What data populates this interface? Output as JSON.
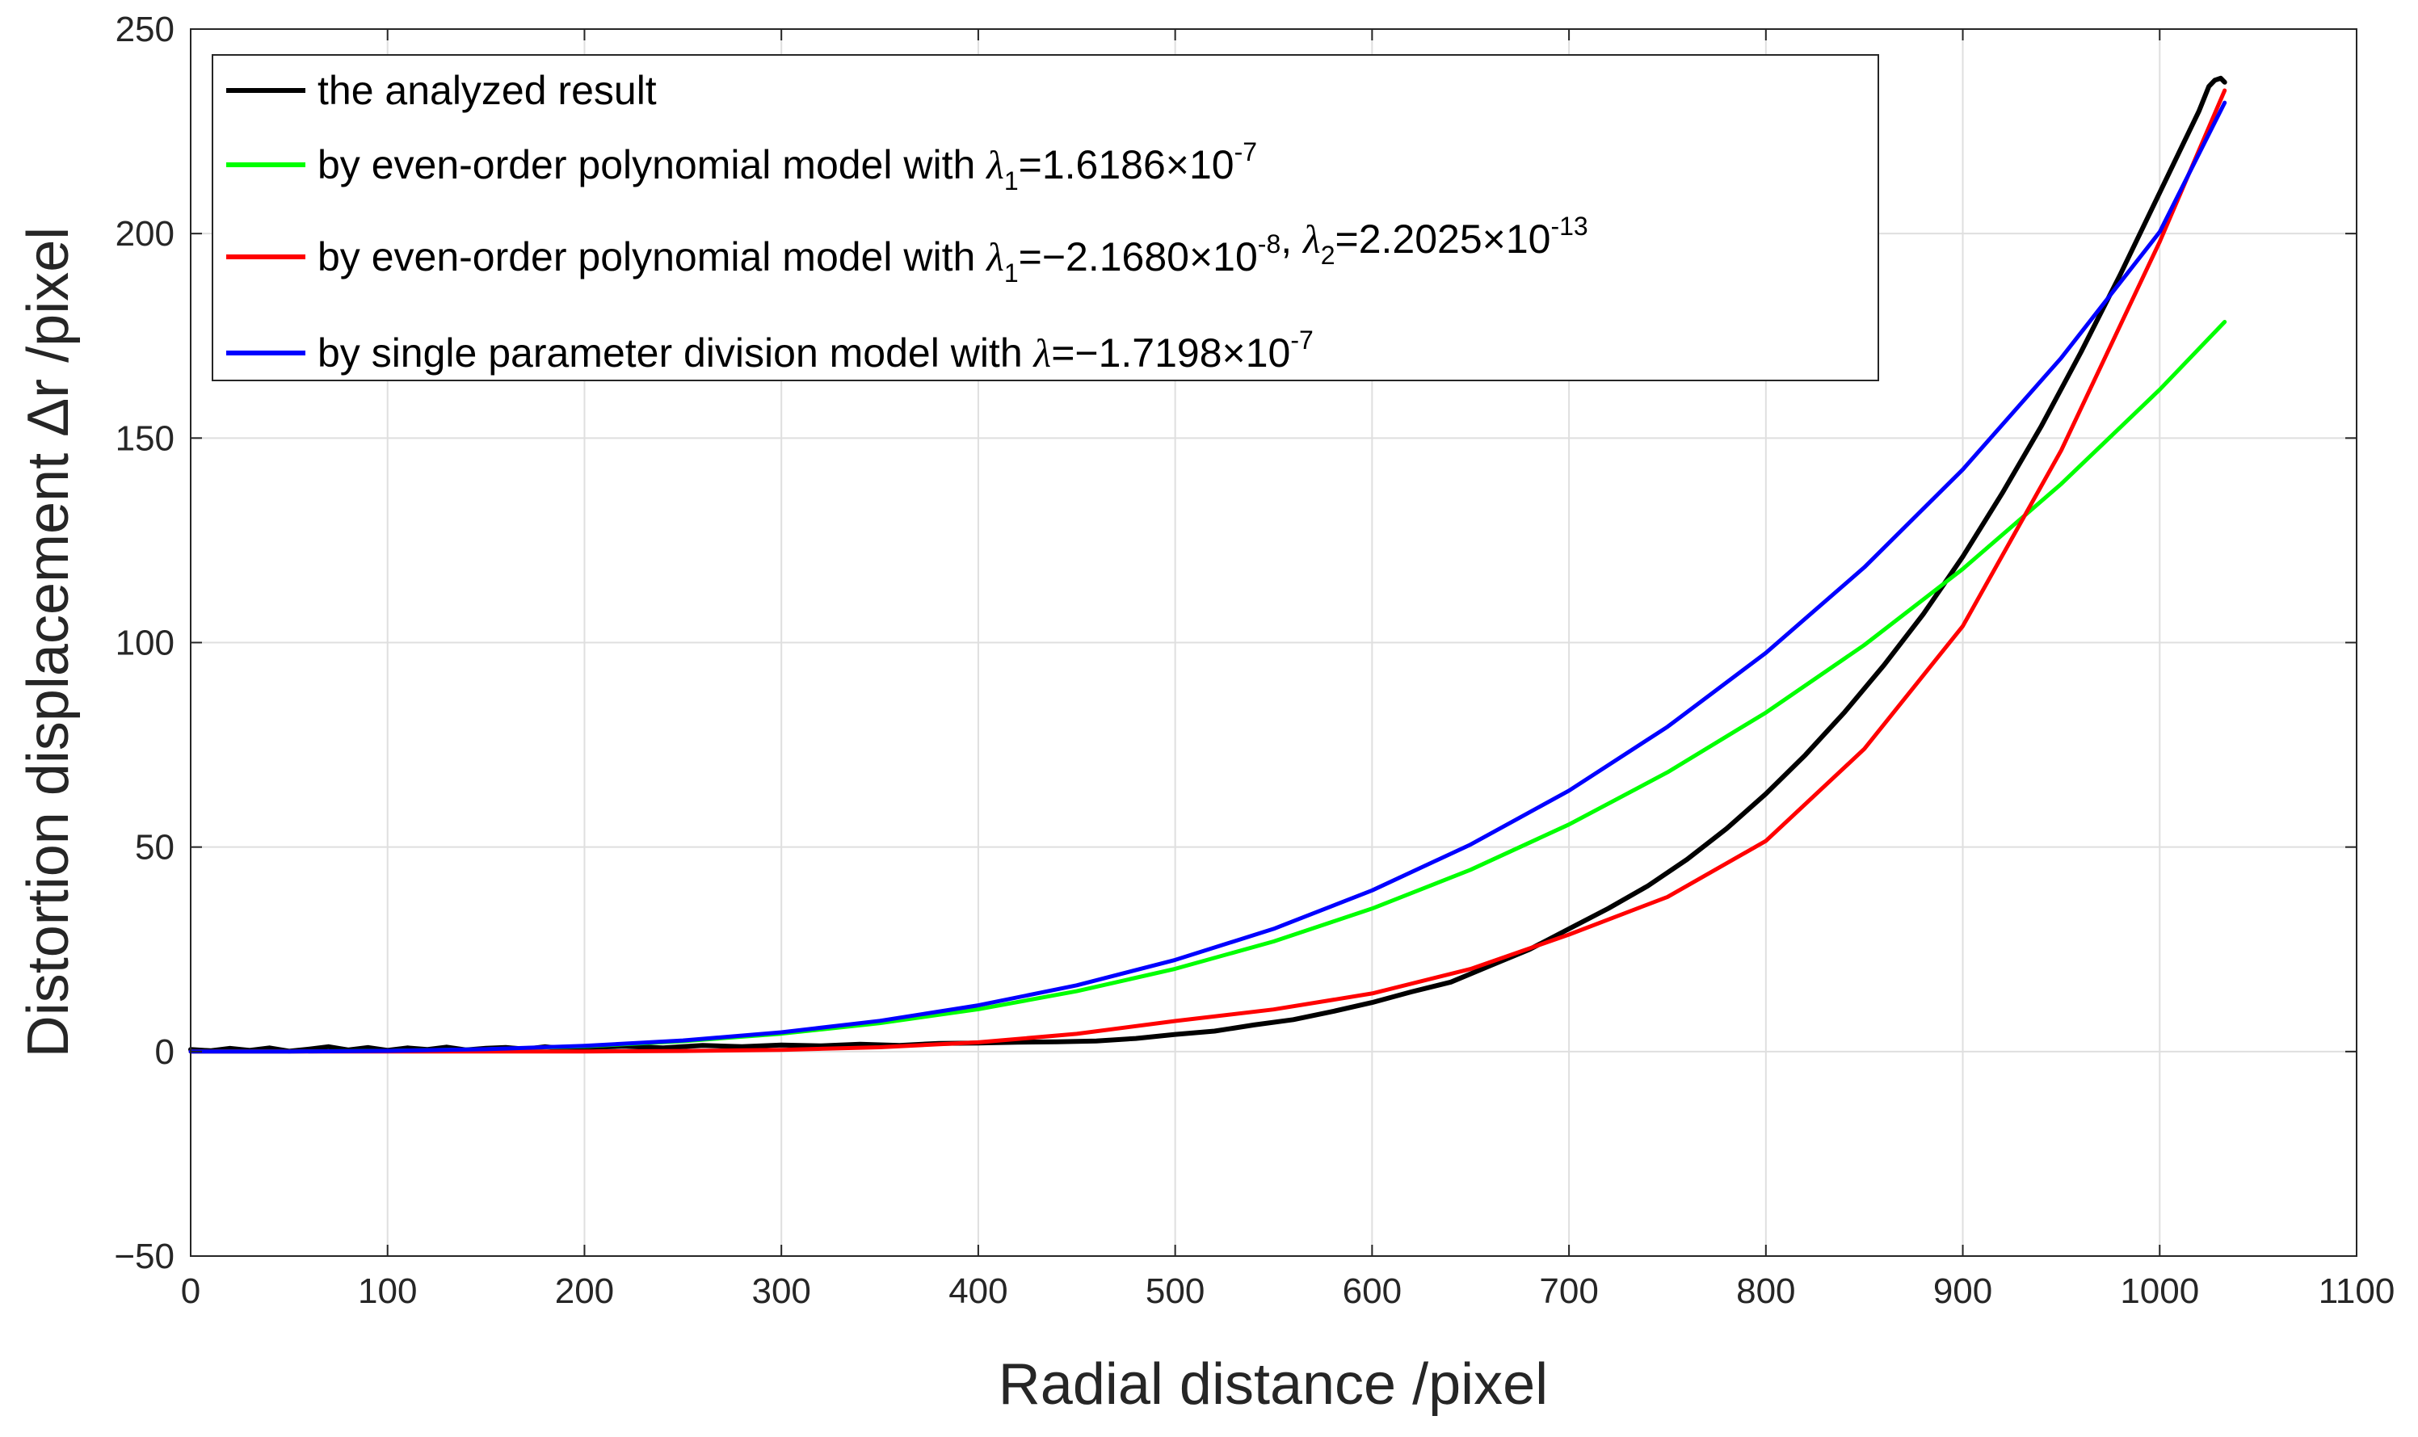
{
  "chart_data": {
    "type": "line",
    "title": "",
    "xlabel": "Radial distance /pixel",
    "ylabel": "Distortion displacement Δr /pixel",
    "xlim": [
      0,
      1100
    ],
    "ylim": [
      -50,
      250
    ],
    "xticks": [
      0,
      100,
      200,
      300,
      400,
      500,
      600,
      700,
      800,
      900,
      1000,
      1100
    ],
    "yticks": [
      -50,
      0,
      50,
      100,
      150,
      200,
      250
    ],
    "xtick_labels": [
      "0",
      "100",
      "200",
      "300",
      "400",
      "500",
      "600",
      "700",
      "800",
      "900",
      "1000",
      "1100"
    ],
    "ytick_labels": [
      "−50",
      "0",
      "50",
      "100",
      "150",
      "200",
      "250"
    ],
    "grid": true,
    "legend_position": "top-left",
    "series": [
      {
        "name": "the analyzed result",
        "legend_parts": [
          "the analyzed result"
        ],
        "color": "#000000",
        "x": [
          0,
          10,
          20,
          30,
          40,
          50,
          60,
          70,
          80,
          90,
          100,
          110,
          120,
          130,
          140,
          150,
          160,
          170,
          180,
          190,
          200,
          220,
          240,
          260,
          280,
          300,
          320,
          340,
          360,
          380,
          400,
          420,
          440,
          460,
          480,
          500,
          520,
          540,
          560,
          580,
          600,
          620,
          640,
          660,
          680,
          700,
          720,
          740,
          760,
          780,
          800,
          820,
          840,
          860,
          880,
          900,
          920,
          940,
          960,
          980,
          1000,
          1010,
          1020,
          1025,
          1028,
          1031,
          1033
        ],
        "y": [
          0.5,
          0.2,
          0.8,
          0.3,
          0.9,
          0.1,
          0.6,
          1.2,
          0.4,
          1.0,
          0.3,
          0.9,
          0.5,
          1.1,
          0.4,
          0.8,
          1.0,
          0.6,
          1.2,
          0.7,
          1.0,
          1.3,
          0.9,
          1.5,
          1.2,
          1.6,
          1.4,
          1.8,
          1.5,
          2.0,
          2.1,
          2.3,
          2.4,
          2.6,
          3.2,
          4.2,
          5.0,
          6.5,
          7.8,
          9.8,
          12.0,
          14.6,
          17.0,
          21.0,
          25.0,
          30.0,
          35.0,
          40.5,
          47.0,
          54.5,
          63.0,
          72.5,
          83.0,
          94.5,
          107.0,
          121.0,
          136.5,
          153.0,
          171.0,
          190.0,
          210.0,
          220.0,
          230.0,
          236.0,
          237.5,
          238.0,
          237.0
        ]
      },
      {
        "name": "by even-order polynomial model with λ1=1.6186×10-7",
        "legend_parts": [
          "by even-order polynomial model with ",
          "λ",
          "1",
          "=1.6186×10",
          "-7"
        ],
        "color": "#00ff00",
        "x": [
          0,
          50,
          100,
          150,
          200,
          250,
          300,
          350,
          400,
          450,
          500,
          550,
          600,
          650,
          700,
          750,
          800,
          850,
          900,
          950,
          1000,
          1033
        ],
        "y": [
          0,
          0.02,
          0.16,
          0.55,
          1.29,
          2.53,
          4.37,
          6.94,
          10.36,
          14.75,
          20.23,
          26.93,
          34.96,
          44.45,
          55.52,
          68.29,
          82.88,
          99.41,
          118.0,
          138.78,
          161.86,
          178.4
        ]
      },
      {
        "name": "by even-order polynomial model with λ1=−2.1680×10-8, λ2=2.2025×10-13",
        "legend_parts": [
          "by even-order polynomial model with ",
          "λ",
          "1",
          "=−2.1680×10",
          "-8",
          ", ",
          "λ",
          "2",
          "=2.2025×10",
          "-13"
        ],
        "color": "#ff0000",
        "x": [
          0,
          50,
          100,
          150,
          200,
          250,
          300,
          350,
          400,
          450,
          500,
          550,
          600,
          650,
          700,
          750,
          800,
          850,
          900,
          950,
          1000,
          1033
        ],
        "y": [
          0,
          0,
          0,
          0,
          0.03,
          0.14,
          0.43,
          1.06,
          2.26,
          4.33,
          7.47,
          10.3,
          14.2,
          20.2,
          28.6,
          37.8,
          51.5,
          74.0,
          104.0,
          147.0,
          198.0,
          235.0
        ]
      },
      {
        "name": "by single parameter division model with λ=−1.7198×10-7",
        "legend_parts": [
          "by single parameter division model with ",
          "λ",
          "",
          "=−1.7198×10",
          "-7"
        ],
        "color": "#0000ff",
        "x": [
          0,
          50,
          100,
          150,
          200,
          250,
          300,
          350,
          400,
          450,
          500,
          550,
          600,
          650,
          700,
          750,
          800,
          850,
          900,
          950,
          1000,
          1033
        ],
        "y": [
          0,
          0.02,
          0.17,
          0.58,
          1.38,
          2.71,
          4.71,
          7.51,
          11.3,
          16.2,
          22.4,
          30.0,
          39.4,
          50.6,
          63.8,
          79.4,
          97.5,
          118.4,
          142.3,
          169.6,
          200.4,
          232.0
        ]
      }
    ]
  }
}
